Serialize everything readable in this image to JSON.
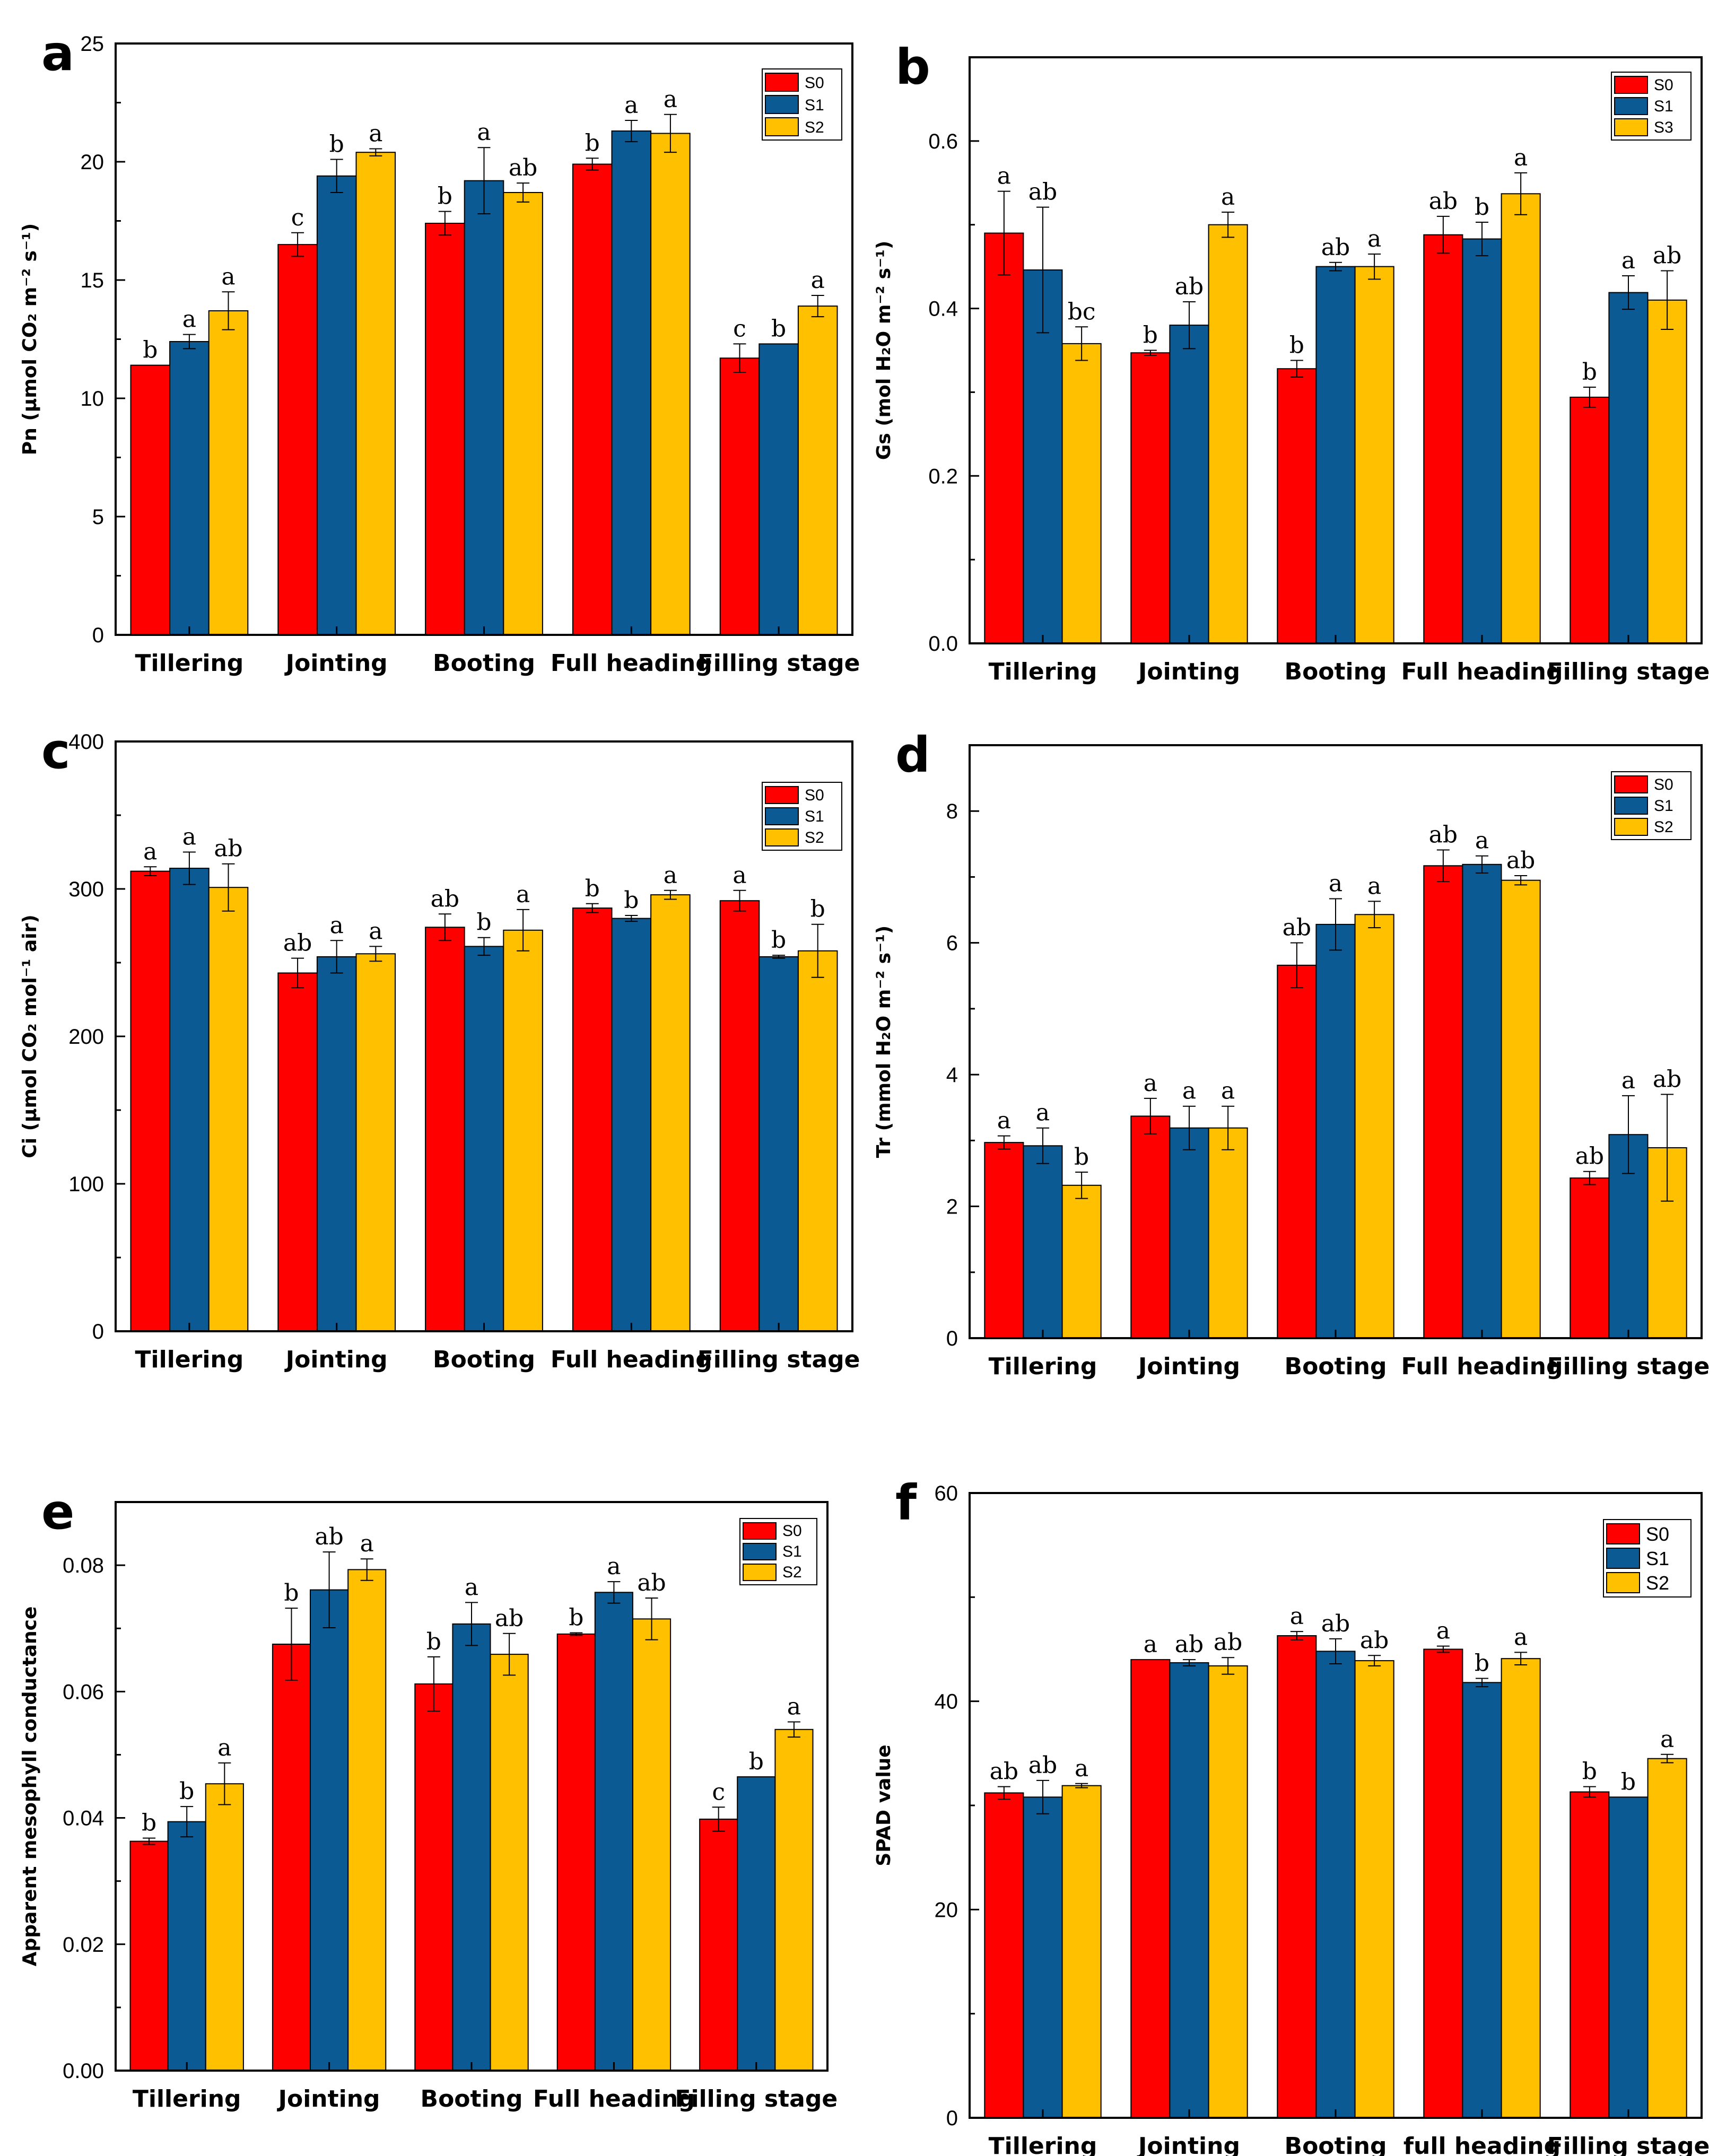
{
  "colors": {
    "S0": "#ff0000",
    "S1": "#0c5a94",
    "S2": "#ffc000",
    "axis": "#000000"
  },
  "chart_data": [
    {
      "panel": "a",
      "type": "bar",
      "ylabel": "Pn (μmol CO₂ m⁻² s⁻¹)",
      "categories": [
        "Tillering",
        "Jointing",
        "Booting",
        "Full heading",
        "Filling stage"
      ],
      "ylim": [
        0,
        25
      ],
      "yticks": [
        0,
        5,
        10,
        15,
        20,
        25
      ],
      "tick_decimals": 0,
      "legend": [
        "S0",
        "S1",
        "S2"
      ],
      "legend_position": "top-right",
      "series": [
        {
          "name": "S0",
          "values": [
            11.4,
            16.5,
            17.4,
            19.9,
            11.7
          ],
          "errors": [
            0.0,
            0.5,
            0.5,
            0.25,
            0.6
          ],
          "letters": [
            "b",
            "c",
            "b",
            "b",
            "c"
          ]
        },
        {
          "name": "S1",
          "values": [
            12.4,
            19.4,
            19.2,
            21.3,
            12.3
          ],
          "errors": [
            0.3,
            0.7,
            1.4,
            0.45,
            0.0
          ],
          "letters": [
            "a",
            "b",
            "a",
            "a",
            "b"
          ]
        },
        {
          "name": "S2",
          "values": [
            13.7,
            20.4,
            18.7,
            21.2,
            13.9
          ],
          "errors": [
            0.8,
            0.15,
            0.4,
            0.8,
            0.45
          ],
          "letters": [
            "a",
            "a",
            "ab",
            "a",
            "a"
          ]
        }
      ]
    },
    {
      "panel": "b",
      "type": "bar",
      "ylabel": "Gs (mol H₂O m⁻² s⁻¹)",
      "categories": [
        "Tillering",
        "Jointing",
        "Booting",
        "Full heading",
        "Filling stage"
      ],
      "ylim": [
        0,
        0.7
      ],
      "yticks": [
        0,
        0.2,
        0.4,
        0.6
      ],
      "tick_decimals": 1,
      "legend": [
        "S0",
        "S1",
        "S3"
      ],
      "legend_position": "top-right",
      "series": [
        {
          "name": "S0",
          "values": [
            0.49,
            0.347,
            0.328,
            0.488,
            0.294
          ],
          "errors": [
            0.05,
            0.003,
            0.01,
            0.022,
            0.012
          ],
          "letters": [
            "a",
            "b",
            "b",
            "ab",
            "b"
          ]
        },
        {
          "name": "S1",
          "values": [
            0.446,
            0.38,
            0.45,
            0.483,
            0.419
          ],
          "errors": [
            0.075,
            0.028,
            0.005,
            0.02,
            0.02
          ],
          "letters": [
            "ab",
            "ab",
            "ab",
            "b",
            "a"
          ]
        },
        {
          "name": "S3",
          "values": [
            0.358,
            0.5,
            0.45,
            0.537,
            0.41
          ],
          "errors": [
            0.02,
            0.015,
            0.015,
            0.025,
            0.035
          ],
          "letters": [
            "bc",
            "a",
            "a",
            "a",
            "ab"
          ]
        }
      ]
    },
    {
      "panel": "c",
      "type": "bar",
      "ylabel": "Ci (μmol CO₂ mol⁻¹ air)",
      "categories": [
        "Tillering",
        "Jointing",
        "Booting",
        "Full heading",
        "Filling stage"
      ],
      "ylim": [
        0,
        400
      ],
      "yticks": [
        0,
        100,
        200,
        300,
        400
      ],
      "tick_decimals": 0,
      "legend": [
        "S0",
        "S1",
        "S2"
      ],
      "legend_position": "top-right",
      "series": [
        {
          "name": "S0",
          "values": [
            312,
            243,
            274,
            287,
            292
          ],
          "errors": [
            3,
            10,
            9,
            3,
            7
          ],
          "letters": [
            "a",
            "ab",
            "ab",
            "b",
            "a"
          ]
        },
        {
          "name": "S1",
          "values": [
            314,
            254,
            261,
            280,
            254
          ],
          "errors": [
            11,
            11,
            6,
            2,
            1
          ],
          "letters": [
            "a",
            "a",
            "b",
            "b",
            "b"
          ]
        },
        {
          "name": "S2",
          "values": [
            301,
            256,
            272,
            296,
            258
          ],
          "errors": [
            16,
            5,
            14,
            3,
            18
          ],
          "letters": [
            "ab",
            "a",
            "a",
            "a",
            "b"
          ]
        }
      ]
    },
    {
      "panel": "d",
      "type": "bar",
      "ylabel": "Tr (mmol H₂O m⁻² s⁻¹)",
      "categories": [
        "Tillering",
        "Jointing",
        "Booting",
        "Full heading",
        "Filling stage"
      ],
      "ylim": [
        0,
        9
      ],
      "yticks": [
        0,
        2,
        4,
        6,
        8
      ],
      "tick_decimals": 0,
      "legend": [
        "S0",
        "S1",
        "S2"
      ],
      "legend_position": "top-right",
      "series": [
        {
          "name": "S0",
          "values": [
            2.97,
            3.37,
            5.66,
            7.17,
            2.43
          ],
          "errors": [
            0.1,
            0.27,
            0.34,
            0.24,
            0.1
          ],
          "letters": [
            "a",
            "a",
            "ab",
            "ab",
            "ab"
          ]
        },
        {
          "name": "S1",
          "values": [
            2.92,
            3.19,
            6.28,
            7.19,
            3.09
          ],
          "errors": [
            0.27,
            0.33,
            0.39,
            0.13,
            0.59
          ],
          "letters": [
            "a",
            "a",
            "a",
            "a",
            "a"
          ]
        },
        {
          "name": "S2",
          "values": [
            2.32,
            3.19,
            6.43,
            6.95,
            2.89
          ],
          "errors": [
            0.2,
            0.33,
            0.2,
            0.07,
            0.81
          ],
          "letters": [
            "b",
            "a",
            "a",
            "ab",
            "ab"
          ]
        }
      ]
    },
    {
      "panel": "e",
      "type": "bar",
      "ylabel": "Apparent mesophyll conductance",
      "categories": [
        "Tillering",
        "Jointing",
        "Booting",
        "Full heading",
        "Filling stage"
      ],
      "ylim": [
        0,
        0.09
      ],
      "yticks": [
        0,
        0.02,
        0.04,
        0.06,
        0.08
      ],
      "tick_decimals": 2,
      "legend": [
        "S0",
        "S1",
        "S2"
      ],
      "legend_position": "top-right",
      "series": [
        {
          "name": "S0",
          "values": [
            0.0363,
            0.0675,
            0.0612,
            0.0691,
            0.0398
          ],
          "errors": [
            0.0005,
            0.0057,
            0.0043,
            0.0002,
            0.0019
          ],
          "letters": [
            "b",
            "b",
            "b",
            "b",
            "c"
          ]
        },
        {
          "name": "S1",
          "values": [
            0.0394,
            0.0761,
            0.0707,
            0.0757,
            0.0465
          ],
          "errors": [
            0.0024,
            0.006,
            0.0034,
            0.0017,
            0.0
          ],
          "letters": [
            "b",
            "ab",
            "a",
            "a",
            "b"
          ]
        },
        {
          "name": "S2",
          "values": [
            0.0454,
            0.0793,
            0.0659,
            0.0715,
            0.054
          ],
          "errors": [
            0.0033,
            0.0017,
            0.0033,
            0.0033,
            0.0012
          ],
          "letters": [
            "a",
            "a",
            "ab",
            "ab",
            "a"
          ]
        }
      ]
    },
    {
      "panel": "f",
      "type": "bar",
      "ylabel": "SPAD value",
      "categories": [
        "Tillering",
        "Jointing",
        "Booting",
        "full heading",
        "Filling stage"
      ],
      "ylim": [
        0,
        60
      ],
      "yticks": [
        0,
        20,
        40,
        60
      ],
      "tick_decimals": 0,
      "legend": [
        "S0",
        "S1",
        "S2"
      ],
      "legend_position": "top-right",
      "series": [
        {
          "name": "S0",
          "values": [
            31.2,
            44.0,
            46.3,
            45.0,
            31.3
          ],
          "errors": [
            0.6,
            0.0,
            0.4,
            0.3,
            0.5
          ],
          "letters": [
            "ab",
            "a",
            "a",
            "a",
            "b"
          ]
        },
        {
          "name": "S1",
          "values": [
            30.8,
            43.7,
            44.8,
            41.8,
            30.8
          ],
          "errors": [
            1.6,
            0.3,
            1.2,
            0.4,
            0.0
          ],
          "letters": [
            "ab",
            "ab",
            "ab",
            "b",
            "b"
          ]
        },
        {
          "name": "S2",
          "values": [
            31.9,
            43.4,
            43.9,
            44.1,
            34.5
          ],
          "errors": [
            0.2,
            0.8,
            0.5,
            0.6,
            0.4
          ],
          "letters": [
            "a",
            "ab",
            "ab",
            "a",
            "a"
          ]
        }
      ]
    }
  ]
}
